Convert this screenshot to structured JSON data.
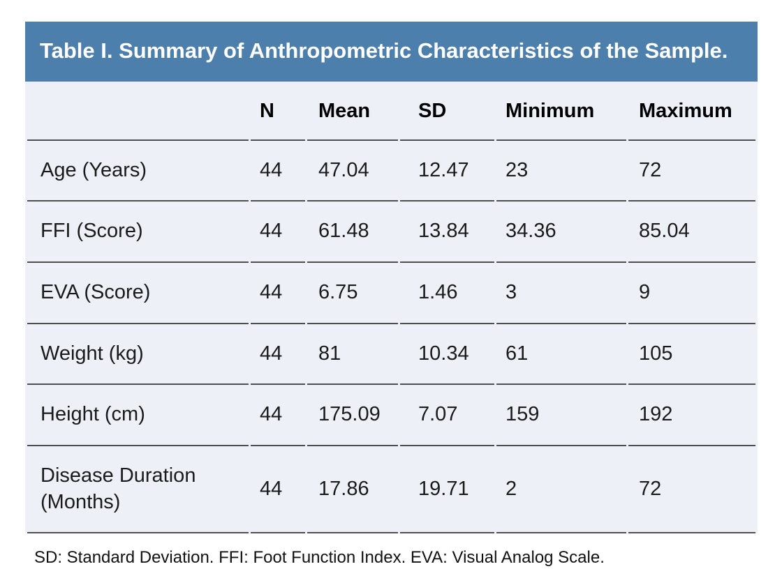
{
  "table": {
    "title": "Table I. Summary of Anthropometric Characteristics of the Sample.",
    "columns": {
      "label": "",
      "n": "N",
      "mean": "Mean",
      "sd": "SD",
      "min": "Minimum",
      "max": "Maximum"
    },
    "rows": [
      {
        "label": "Age (Years)",
        "n": "44",
        "mean": "47.04",
        "sd": "12.47",
        "min": "23",
        "max": "72"
      },
      {
        "label": "FFI (Score)",
        "n": "44",
        "mean": "61.48",
        "sd": "13.84",
        "min": "34.36",
        "max": "85.04"
      },
      {
        "label": "EVA (Score)",
        "n": "44",
        "mean": "6.75",
        "sd": "1.46",
        "min": "3",
        "max": "9"
      },
      {
        "label": "Weight (kg)",
        "n": "44",
        "mean": "81",
        "sd": "10.34",
        "min": "61",
        "max": "105"
      },
      {
        "label": "Height (cm)",
        "n": "44",
        "mean": "175.09",
        "sd": "7.07",
        "min": "159",
        "max": "192"
      },
      {
        "label": "Disease Duration (Months)",
        "n": "44",
        "mean": "17.86",
        "sd": "19.71",
        "min": "2",
        "max": "72"
      }
    ],
    "footnote": "SD: Standard Deviation. FFI: Foot Function Index. EVA: Visual Analog Scale."
  },
  "colors": {
    "header_band": "#4d7fac",
    "row_background": "#edf0f6",
    "rule_line": "#4f4f4f",
    "title_text": "#ffffff",
    "body_text": "#1a1a1a",
    "page_background": "#ffffff"
  }
}
